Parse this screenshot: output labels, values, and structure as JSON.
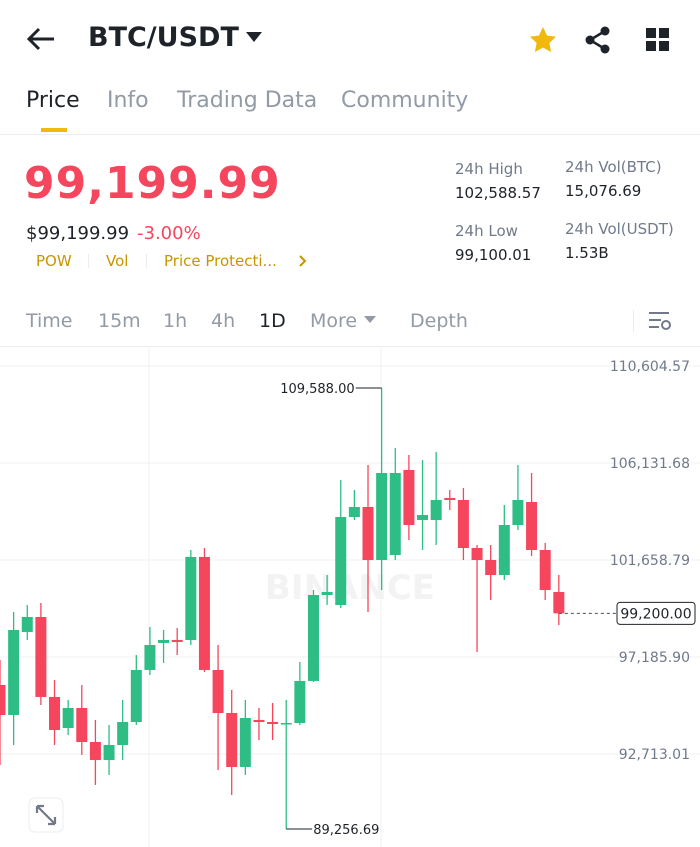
{
  "header": {
    "pair": "BTC/USDT"
  },
  "tabs": [
    "Price",
    "Info",
    "Trading Data",
    "Community"
  ],
  "price": {
    "last": "99,199.99",
    "usd": "$99,199.99",
    "change": "-3.00%",
    "tags": [
      "POW",
      "Vol",
      "Price Protecti..."
    ]
  },
  "stats": [
    {
      "label": "24h High",
      "value": "102,588.57"
    },
    {
      "label": "24h Vol(BTC)",
      "value": "15,076.69"
    },
    {
      "label": "24h Low",
      "value": "99,100.01"
    },
    {
      "label": "24h Vol(USDT)",
      "value": "1.53B"
    }
  ],
  "intervals": [
    "Time",
    "15m",
    "1h",
    "4h",
    "1D",
    "More",
    "Depth"
  ],
  "chart": {
    "type": "candlestick",
    "watermark": "BINANCE",
    "up_color": "#2ebd85",
    "down_color": "#f6465d",
    "ylim": [
      88426,
      111481
    ],
    "yticks": [
      {
        "value": 110604.57,
        "label": "110,604.57"
      },
      {
        "value": 106131.68,
        "label": "106,131.68"
      },
      {
        "value": 101658.79,
        "label": "101,658.79"
      },
      {
        "value": 97185.9,
        "label": "97,185.90"
      },
      {
        "value": 92713.01,
        "label": "92,713.01"
      }
    ],
    "candles": [
      [
        95897,
        97050,
        92208,
        94513
      ],
      [
        94513,
        99262,
        93130,
        98433
      ],
      [
        98341,
        99585,
        97972,
        99032
      ],
      [
        99032,
        99677,
        94974,
        95344
      ],
      [
        95344,
        96128,
        93130,
        93821
      ],
      [
        93914,
        95204,
        93591,
        94836
      ],
      [
        94836,
        95897,
        92669,
        93268
      ],
      [
        93268,
        94283,
        91286,
        92438
      ],
      [
        92438,
        94052,
        91747,
        93130
      ],
      [
        93130,
        95204,
        92438,
        94190
      ],
      [
        94190,
        97280,
        94052,
        96589
      ],
      [
        96589,
        98571,
        96359,
        97741
      ],
      [
        97834,
        98433,
        96912,
        97972
      ],
      [
        97972,
        98525,
        97280,
        97880
      ],
      [
        97972,
        102121,
        97741,
        101798
      ],
      [
        101798,
        102213,
        96497,
        96589
      ],
      [
        96589,
        97741,
        91977,
        94605
      ],
      [
        94605,
        95667,
        90824,
        92116
      ],
      [
        92116,
        95204,
        91747,
        94375
      ],
      [
        94283,
        94836,
        93360,
        94190
      ],
      [
        94190,
        95066,
        93360,
        94098
      ],
      [
        94098,
        95204,
        89256.69,
        94144
      ],
      [
        94144,
        96958,
        94052,
        96082
      ],
      [
        96082,
        100276,
        96036,
        100046
      ],
      [
        100046,
        100967,
        99585,
        100184
      ],
      [
        99585,
        105348,
        99446,
        103642
      ],
      [
        103642,
        104887,
        103503,
        104103
      ],
      [
        104103,
        106040,
        99262,
        101659
      ],
      [
        101659,
        109588.0,
        100276,
        105671
      ],
      [
        101890,
        106824,
        101659,
        105671
      ],
      [
        105810,
        106501,
        102582,
        103273
      ],
      [
        103503,
        106271,
        102121,
        103734
      ],
      [
        103503,
        106640,
        102351,
        104426
      ],
      [
        104518,
        104887,
        103965,
        104426
      ],
      [
        104426,
        104980,
        101659,
        102213
      ],
      [
        102213,
        102351,
        97419,
        101659
      ],
      [
        101659,
        102351,
        99815,
        100967
      ],
      [
        100967,
        104195,
        100737,
        103273
      ],
      [
        103273,
        106040,
        103043,
        104426
      ],
      [
        104334,
        105671,
        101844,
        102121
      ],
      [
        102121,
        102443,
        99815,
        100276
      ],
      [
        100184,
        100967,
        98663,
        99200.0
      ]
    ],
    "high_label": {
      "candle": 28,
      "text": "109,588.00"
    },
    "low_label": {
      "candle": 21,
      "text": "89,256.69"
    },
    "current": {
      "value": 99200.0,
      "label": "99,200.00"
    }
  }
}
